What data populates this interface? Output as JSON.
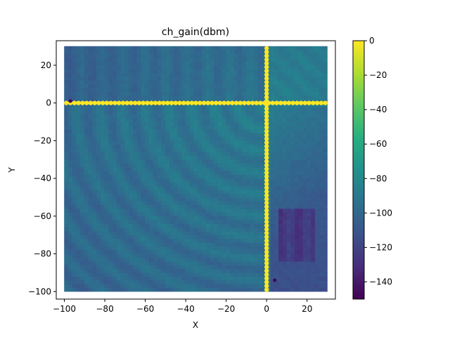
{
  "chart_data": {
    "type": "heatmap",
    "title": "ch_gain(dbm)",
    "xlabel": "X",
    "ylabel": "Y",
    "xlim": [
      -104,
      34
    ],
    "ylim": [
      -104,
      33
    ],
    "x_ticks": [
      -100,
      -80,
      -60,
      -40,
      -20,
      0,
      20
    ],
    "y_ticks": [
      -100,
      -80,
      -60,
      -40,
      -20,
      0,
      20
    ],
    "grid": false,
    "colormap": "viridis",
    "colorbar": {
      "range": [
        -150,
        0
      ],
      "ticks": [
        0,
        -20,
        -40,
        -60,
        -80,
        -100,
        -120,
        -140
      ]
    },
    "data_extent": {
      "x": [
        -99,
        29
      ],
      "y": [
        -99,
        29
      ],
      "step": 2
    },
    "features": {
      "source_position": [
        0,
        0
      ],
      "yellow_line_horizontal_y": 0,
      "yellow_line_vertical_x": 0,
      "yellow_value_dbm": 0,
      "background_near_dbm": -85,
      "background_far_dbm": -100,
      "low_region_dbm": -125
    }
  },
  "tick_text": {
    "x": [
      "−100",
      "−80",
      "−60",
      "−40",
      "−20",
      "0",
      "20"
    ],
    "y": [
      "−100",
      "−80",
      "−60",
      "−40",
      "−20",
      "0",
      "20"
    ],
    "cbar": [
      "0",
      "−20",
      "−40",
      "−60",
      "−80",
      "−100",
      "−120",
      "−140"
    ]
  },
  "colors": {
    "yellow": "#fde725",
    "dark": "#440154",
    "axis": "#000000"
  }
}
